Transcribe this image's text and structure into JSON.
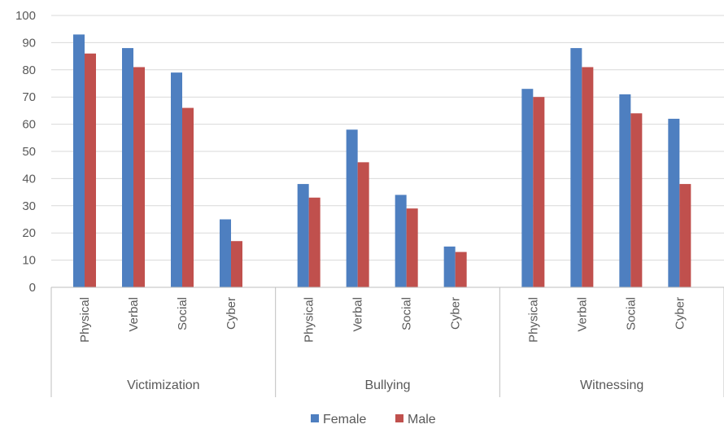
{
  "chart_data": {
    "type": "bar",
    "groups": [
      {
        "name": "Victimization",
        "categories": [
          "Physical",
          "Verbal",
          "Social",
          "Cyber"
        ]
      },
      {
        "name": "Bullying",
        "categories": [
          "Physical",
          "Verbal",
          "Social",
          "Cyber"
        ]
      },
      {
        "name": "Witnessing",
        "categories": [
          "Physical",
          "Verbal",
          "Social",
          "Cyber"
        ]
      }
    ],
    "series": [
      {
        "name": "Female",
        "color": "#4e7fc0",
        "values": [
          93,
          88,
          79,
          25,
          38,
          58,
          34,
          15,
          73,
          88,
          71,
          62
        ]
      },
      {
        "name": "Male",
        "color": "#c0504d",
        "values": [
          86,
          81,
          66,
          17,
          33,
          46,
          29,
          13,
          70,
          81,
          64,
          38
        ]
      }
    ],
    "ylim": [
      0,
      100
    ],
    "yticks": [
      0,
      10,
      20,
      30,
      40,
      50,
      60,
      70,
      80,
      90,
      100
    ],
    "grid": true,
    "legend": "bottom",
    "title": "",
    "xlabel": "",
    "ylabel": ""
  }
}
